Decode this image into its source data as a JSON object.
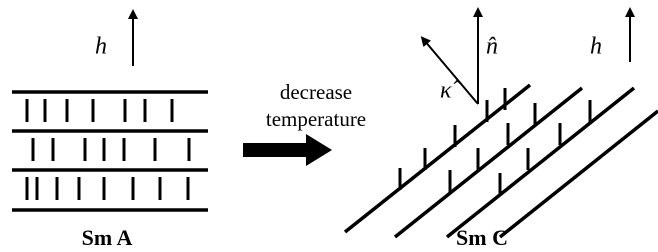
{
  "left": {
    "field_label": "h⃗",
    "caption": "Sm A"
  },
  "arrow": {
    "line1": "decrease",
    "line2": "temperature"
  },
  "right": {
    "normal_label": "n̂",
    "director_label": "κ̂",
    "field_label": "h⃗",
    "caption": "Sm C"
  }
}
